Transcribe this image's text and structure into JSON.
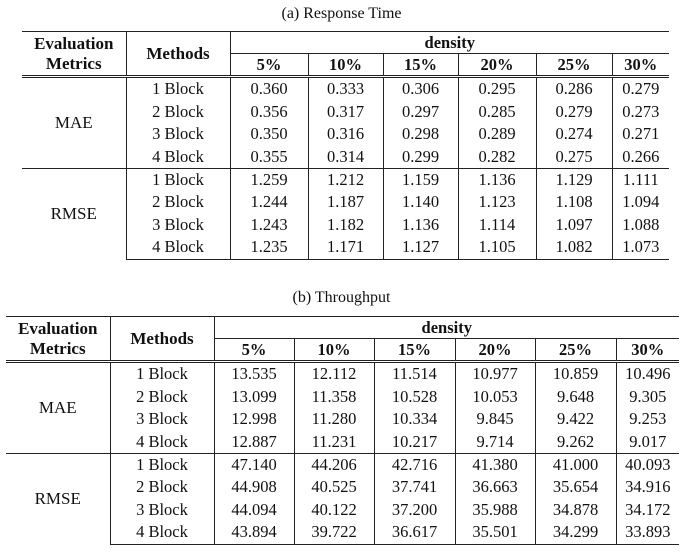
{
  "tables": [
    {
      "caption": "(a)  Response Time",
      "header": {
        "metrics": [
          "Evaluation",
          "Metrics"
        ],
        "methods": "Methods",
        "density": "density"
      },
      "densities": [
        "5%",
        "10%",
        "15%",
        "20%",
        "25%",
        "30%"
      ],
      "groups": [
        {
          "metric": "MAE",
          "rows": [
            {
              "method": "1 Block",
              "values": [
                "0.360",
                "0.333",
                "0.306",
                "0.295",
                "0.286",
                "0.279"
              ]
            },
            {
              "method": "2 Block",
              "values": [
                "0.356",
                "0.317",
                "0.297",
                "0.285",
                "0.279",
                "0.273"
              ]
            },
            {
              "method": "3 Block",
              "values": [
                "0.350",
                "0.316",
                "0.298",
                "0.289",
                "0.274",
                "0.271"
              ]
            },
            {
              "method": "4 Block",
              "values": [
                "0.355",
                "0.314",
                "0.299",
                "0.282",
                "0.275",
                "0.266"
              ]
            }
          ]
        },
        {
          "metric": "RMSE",
          "rows": [
            {
              "method": "1 Block",
              "values": [
                "1.259",
                "1.212",
                "1.159",
                "1.136",
                "1.129",
                "1.111"
              ]
            },
            {
              "method": "2 Block",
              "values": [
                "1.244",
                "1.187",
                "1.140",
                "1.123",
                "1.108",
                "1.094"
              ]
            },
            {
              "method": "3 Block",
              "values": [
                "1.243",
                "1.182",
                "1.136",
                "1.114",
                "1.097",
                "1.088"
              ]
            },
            {
              "method": "4 Block",
              "values": [
                "1.235",
                "1.171",
                "1.127",
                "1.105",
                "1.082",
                "1.073"
              ]
            }
          ]
        }
      ]
    },
    {
      "caption": "(b)  Throughput",
      "header": {
        "metrics": [
          "Evaluation",
          "Metrics"
        ],
        "methods": "Methods",
        "density": "density"
      },
      "densities": [
        "5%",
        "10%",
        "15%",
        "20%",
        "25%",
        "30%"
      ],
      "groups": [
        {
          "metric": "MAE",
          "rows": [
            {
              "method": "1 Block",
              "values": [
                "13.535",
                "12.112",
                "11.514",
                "10.977",
                "10.859",
                "10.496"
              ]
            },
            {
              "method": "2 Block",
              "values": [
                "13.099",
                "11.358",
                "10.528",
                "10.053",
                "9.648",
                "9.305"
              ]
            },
            {
              "method": "3 Block",
              "values": [
                "12.998",
                "11.280",
                "10.334",
                "9.845",
                "9.422",
                "9.253"
              ]
            },
            {
              "method": "4 Block",
              "values": [
                "12.887",
                "11.231",
                "10.217",
                "9.714",
                "9.262",
                "9.017"
              ]
            }
          ]
        },
        {
          "metric": "RMSE",
          "rows": [
            {
              "method": "1 Block",
              "values": [
                "47.140",
                "44.206",
                "42.716",
                "41.380",
                "41.000",
                "40.093"
              ]
            },
            {
              "method": "2 Block",
              "values": [
                "44.908",
                "40.525",
                "37.741",
                "36.663",
                "35.654",
                "34.916"
              ]
            },
            {
              "method": "3 Block",
              "values": [
                "44.094",
                "40.122",
                "37.200",
                "35.988",
                "34.878",
                "34.172"
              ]
            },
            {
              "method": "4 Block",
              "values": [
                "43.894",
                "39.722",
                "36.617",
                "35.501",
                "34.299",
                "33.893"
              ]
            }
          ]
        }
      ]
    }
  ]
}
